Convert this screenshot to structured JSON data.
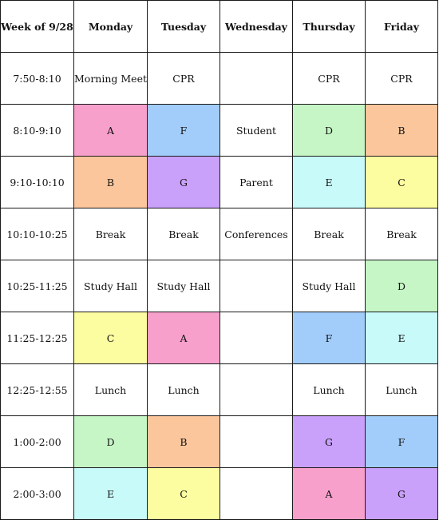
{
  "header": {
    "week": "Week of 9/28",
    "days": [
      "Monday",
      "Tuesday",
      "Wednesday",
      "Thursday",
      "Friday"
    ]
  },
  "rows": [
    {
      "time": "7:50-8:10",
      "cells": [
        "Morning Meet",
        "CPR",
        "",
        "CPR",
        "CPR"
      ]
    },
    {
      "time": "8:10-9:10",
      "cells": [
        "A",
        "F",
        "Student",
        "D",
        "B"
      ]
    },
    {
      "time": "9:10-10:10",
      "cells": [
        "B",
        "G",
        "Parent",
        "E",
        "C"
      ]
    },
    {
      "time": "10:10-10:25",
      "cells": [
        "Break",
        "Break",
        "Conferences",
        "Break",
        "Break"
      ]
    },
    {
      "time": "10:25-11:25",
      "cells": [
        "Study Hall",
        "Study Hall",
        "",
        "Study Hall",
        "D"
      ]
    },
    {
      "time": "11:25-12:25",
      "cells": [
        "C",
        "A",
        "",
        "F",
        "E"
      ]
    },
    {
      "time": "12:25-12:55",
      "cells": [
        "Lunch",
        "Lunch",
        "",
        "Lunch",
        "Lunch"
      ]
    },
    {
      "time": "1:00-2:00",
      "cells": [
        "D",
        "B",
        "",
        "G",
        "F"
      ]
    },
    {
      "time": "2:00-3:00",
      "cells": [
        "E",
        "C",
        "",
        "A",
        "G"
      ]
    }
  ],
  "block_colors": {
    "A": "#f8a0cc",
    "B": "#fbc69c",
    "C": "#fcfca0",
    "D": "#c6f6c6",
    "E": "#c8fafa",
    "F": "#a2cdfa",
    "G": "#c9a0fa"
  }
}
